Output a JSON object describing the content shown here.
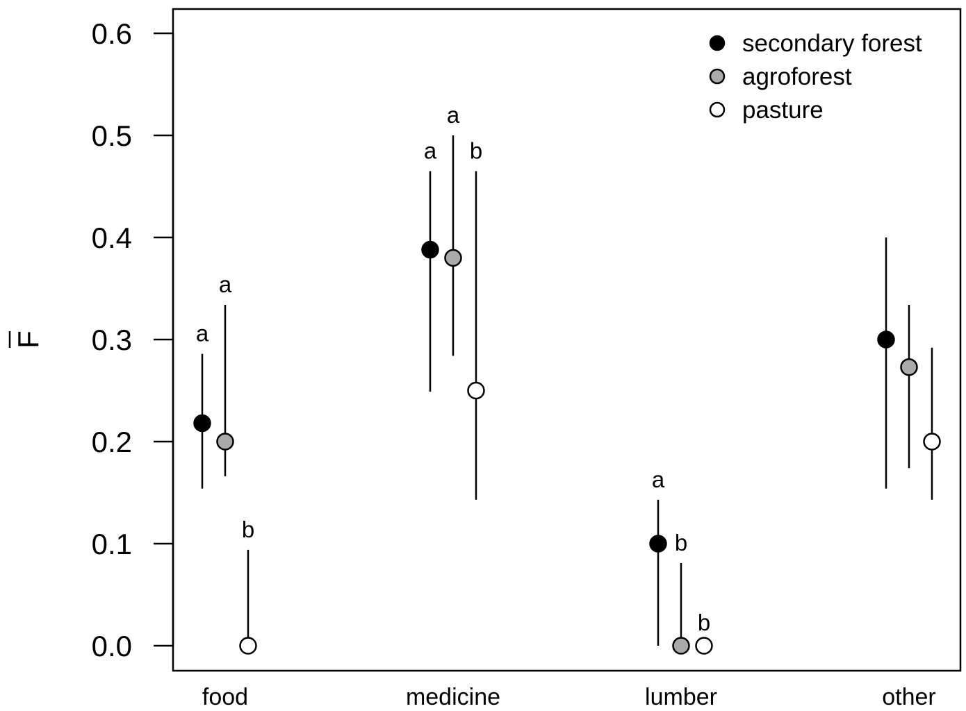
{
  "chart_data": {
    "type": "scatter",
    "title": "",
    "ylabel": "F",
    "xlabel": "",
    "ylim": [
      0,
      0.6
    ],
    "yticks": [
      "0.0",
      "0.1",
      "0.2",
      "0.3",
      "0.4",
      "0.5",
      "0.6"
    ],
    "categories": [
      "food",
      "medicine",
      "lumber",
      "other"
    ],
    "legend_position": "top-right",
    "series": [
      {
        "name": "secondary forest",
        "color": "#000000",
        "values": [
          0.218,
          0.388,
          0.1,
          0.3
        ],
        "lower": [
          0.154,
          0.249,
          0.0,
          0.154
        ],
        "upper": [
          0.286,
          0.465,
          0.143,
          0.4
        ],
        "letters": [
          "a",
          "a",
          "a",
          ""
        ]
      },
      {
        "name": "agroforest",
        "color": "#aaaaaa",
        "values": [
          0.2,
          0.38,
          0.0,
          0.273
        ],
        "lower": [
          0.166,
          0.284,
          0.0,
          0.174
        ],
        "upper": [
          0.334,
          0.5,
          0.081,
          0.334
        ],
        "letters": [
          "a",
          "a",
          "b",
          ""
        ]
      },
      {
        "name": "pasture",
        "color": "#ffffff",
        "values": [
          0.0,
          0.25,
          0.0,
          0.2
        ],
        "lower": [
          0.0,
          0.143,
          0.0,
          0.143
        ],
        "upper": [
          0.094,
          0.465,
          0.0,
          0.292
        ],
        "letters": [
          "b",
          "b",
          "b",
          ""
        ]
      }
    ]
  }
}
